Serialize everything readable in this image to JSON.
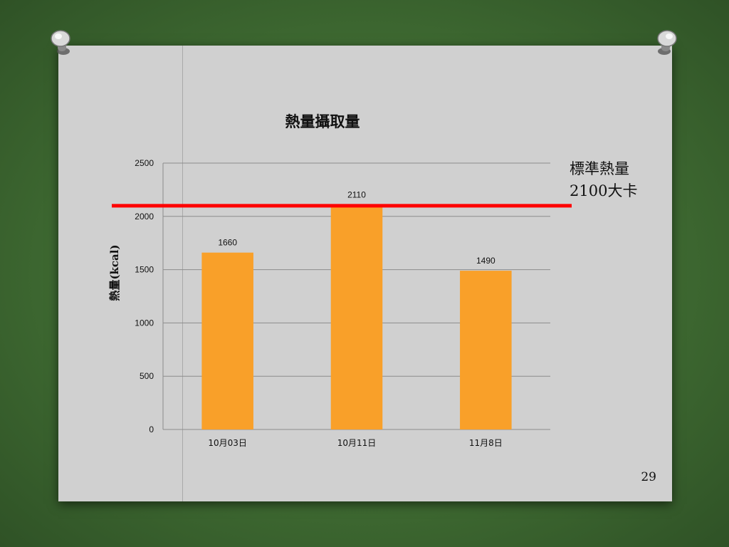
{
  "chart_data": {
    "type": "bar",
    "title": "熱量攝取量",
    "ylabel": "熱量(kcal)",
    "xlabel": "",
    "categories": [
      "10月03日",
      "10月11日",
      "11月8日"
    ],
    "values": [
      1660,
      2110,
      1490
    ],
    "data_labels": [
      "1660",
      "2110",
      "1490"
    ],
    "ylim": [
      0,
      2500
    ],
    "yticks": [
      0,
      500,
      1000,
      1500,
      2000,
      2500
    ],
    "grid": true,
    "bar_color": "#f9a029",
    "reference_line": {
      "value": 2100,
      "color": "#ff0000",
      "label_line1": "標準熱量",
      "label_line2": "2100大卡"
    }
  },
  "slide": {
    "page_number": "29"
  }
}
